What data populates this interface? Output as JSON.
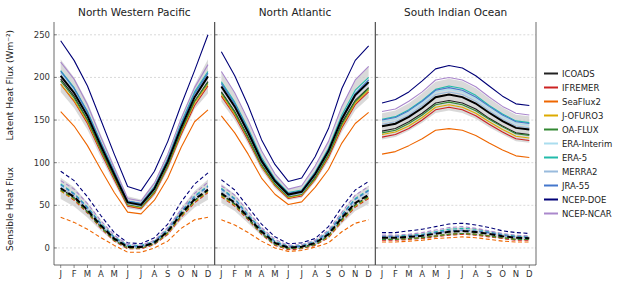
{
  "chart_data": {
    "type": "line",
    "categories": [
      "J",
      "F",
      "M",
      "A",
      "M",
      "J",
      "J",
      "A",
      "S",
      "O",
      "N",
      "D"
    ],
    "y_labels": [
      "Latent Heat Flux (Wm⁻²)",
      "Sensible Heat Flux"
    ],
    "ylim": [
      -20,
      265
    ],
    "yticks": [
      0,
      50,
      100,
      150,
      200,
      250
    ],
    "grid": true,
    "legend": "right",
    "series": [
      {
        "name": "ICOADS",
        "color": "#222222",
        "lhf": [
          [
            198,
            178,
            150,
            116,
            83,
            50,
            47,
            65,
            97,
            137,
            172,
            195
          ],
          [
            183,
            160,
            130,
            98,
            75,
            60,
            63,
            83,
            110,
            147,
            173,
            188
          ],
          [
            137,
            140,
            148,
            158,
            170,
            173,
            170,
            163,
            152,
            143,
            135,
            133
          ]
        ],
        "shf": [
          [
            70,
            59,
            43,
            25,
            10,
            1,
            1,
            6,
            19,
            39,
            56,
            68
          ],
          [
            63,
            52,
            35,
            18,
            5,
            0,
            1,
            5,
            15,
            34,
            51,
            61
          ],
          [
            10,
            10,
            11,
            12,
            14,
            16,
            17,
            16,
            14,
            12,
            10,
            10
          ]
        ]
      },
      {
        "name": "IFREMER",
        "color": "#cc2222",
        "lhf": [
          [
            192,
            172,
            146,
            112,
            80,
            49,
            46,
            64,
            95,
            133,
            167,
            190
          ],
          [
            178,
            155,
            126,
            95,
            73,
            58,
            61,
            80,
            106,
            141,
            168,
            183
          ],
          [
            130,
            133,
            140,
            150,
            162,
            165,
            162,
            155,
            145,
            136,
            128,
            126
          ]
        ],
        "shf": [
          [
            67,
            56,
            41,
            23,
            8,
            -1,
            -1,
            4,
            16,
            36,
            53,
            65
          ],
          [
            60,
            49,
            33,
            16,
            3,
            -2,
            -1,
            3,
            12,
            31,
            48,
            58
          ],
          [
            9,
            9,
            10,
            11,
            13,
            15,
            16,
            15,
            13,
            11,
            9,
            9
          ]
        ]
      },
      {
        "name": "SeaFlux2",
        "color": "#ee6600",
        "lhf": [
          [
            160,
            143,
            120,
            92,
            65,
            42,
            40,
            56,
            82,
            118,
            148,
            162
          ],
          [
            155,
            135,
            110,
            82,
            63,
            51,
            54,
            71,
            92,
            123,
            146,
            159
          ],
          [
            110,
            113,
            120,
            128,
            138,
            140,
            138,
            132,
            123,
            115,
            108,
            106
          ]
        ],
        "shf": [
          [
            36,
            30,
            22,
            12,
            3,
            -5,
            -5,
            0,
            8,
            23,
            33,
            36
          ],
          [
            33,
            27,
            18,
            8,
            0,
            -4,
            -3,
            1,
            6,
            19,
            29,
            33
          ],
          [
            7,
            7,
            8,
            9,
            11,
            12,
            13,
            12,
            10,
            8,
            7,
            7
          ]
        ]
      },
      {
        "name": "J-OFURO3",
        "color": "#ddaa00",
        "lhf": [
          [
            192,
            173,
            148,
            114,
            82,
            50,
            47,
            65,
            96,
            135,
            170,
            192
          ],
          [
            180,
            157,
            128,
            96,
            74,
            59,
            62,
            81,
            108,
            143,
            170,
            185
          ],
          [
            133,
            136,
            143,
            153,
            165,
            168,
            165,
            158,
            148,
            139,
            131,
            129
          ]
        ],
        "shf": [
          [
            67,
            57,
            42,
            24,
            9,
            0,
            0,
            5,
            17,
            37,
            54,
            66
          ],
          [
            61,
            50,
            34,
            17,
            4,
            -1,
            0,
            4,
            13,
            32,
            49,
            59
          ],
          [
            10,
            10,
            11,
            12,
            14,
            16,
            17,
            16,
            14,
            12,
            10,
            10
          ]
        ]
      },
      {
        "name": "OA-FLUX",
        "color": "#338833",
        "lhf": [
          [
            196,
            176,
            150,
            115,
            83,
            51,
            48,
            66,
            97,
            137,
            172,
            194
          ],
          [
            182,
            159,
            129,
            97,
            75,
            60,
            63,
            82,
            109,
            145,
            172,
            187
          ],
          [
            135,
            138,
            146,
            156,
            168,
            171,
            168,
            161,
            151,
            142,
            134,
            132
          ]
        ],
        "shf": [
          [
            68,
            58,
            42,
            24,
            9,
            0,
            0,
            5,
            18,
            38,
            55,
            67
          ],
          [
            62,
            51,
            34,
            17,
            4,
            -1,
            0,
            4,
            14,
            33,
            50,
            60
          ],
          [
            10,
            10,
            11,
            12,
            14,
            16,
            17,
            16,
            14,
            12,
            10,
            10
          ]
        ]
      },
      {
        "name": "ERA-Interim",
        "color": "#aaddee",
        "lhf": [
          [
            205,
            185,
            158,
            122,
            88,
            54,
            51,
            70,
            103,
            144,
            180,
            204
          ],
          [
            192,
            168,
            138,
            104,
            80,
            64,
            67,
            88,
            116,
            154,
            182,
            197
          ],
          [
            148,
            151,
            159,
            170,
            183,
            186,
            183,
            175,
            164,
            154,
            146,
            144
          ]
        ],
        "shf": [
          [
            73,
            63,
            47,
            28,
            12,
            2,
            2,
            7,
            21,
            42,
            59,
            71
          ],
          [
            68,
            56,
            38,
            21,
            7,
            1,
            2,
            7,
            18,
            38,
            56,
            66
          ],
          [
            13,
            13,
            14,
            15,
            18,
            20,
            21,
            20,
            18,
            15,
            13,
            12
          ]
        ]
      },
      {
        "name": "ERA-5",
        "color": "#22bbaa",
        "lhf": [
          [
            208,
            188,
            160,
            124,
            90,
            55,
            52,
            72,
            105,
            147,
            183,
            207
          ],
          [
            195,
            171,
            140,
            106,
            81,
            65,
            68,
            89,
            117,
            156,
            185,
            200
          ],
          [
            151,
            154,
            162,
            173,
            186,
            190,
            187,
            179,
            167,
            157,
            149,
            147
          ]
        ],
        "shf": [
          [
            75,
            64,
            48,
            29,
            13,
            3,
            3,
            8,
            22,
            43,
            61,
            73
          ],
          [
            70,
            58,
            39,
            22,
            8,
            2,
            3,
            8,
            19,
            39,
            58,
            68
          ],
          [
            14,
            14,
            15,
            16,
            19,
            22,
            23,
            22,
            19,
            16,
            14,
            13
          ]
        ]
      },
      {
        "name": "MERRA2",
        "color": "#99bbdd",
        "lhf": [
          [
            202,
            182,
            154,
            119,
            86,
            52,
            49,
            68,
            100,
            141,
            177,
            200
          ],
          [
            188,
            165,
            134,
            100,
            77,
            61,
            64,
            85,
            112,
            150,
            178,
            193
          ],
          [
            145,
            148,
            156,
            167,
            180,
            183,
            180,
            172,
            161,
            151,
            143,
            141
          ]
        ],
        "shf": [
          [
            71,
            61,
            45,
            27,
            11,
            1,
            1,
            6,
            20,
            40,
            58,
            69
          ],
          [
            66,
            54,
            36,
            19,
            5,
            0,
            1,
            5,
            16,
            36,
            53,
            64
          ],
          [
            12,
            12,
            13,
            14,
            17,
            19,
            20,
            19,
            17,
            14,
            12,
            11
          ]
        ]
      },
      {
        "name": "JRA-55",
        "color": "#4477cc",
        "lhf": [
          [
            207,
            187,
            159,
            123,
            89,
            55,
            52,
            71,
            104,
            145,
            181,
            205
          ],
          [
            193,
            169,
            138,
            104,
            80,
            64,
            67,
            88,
            115,
            153,
            181,
            197
          ],
          [
            150,
            153,
            161,
            172,
            185,
            188,
            185,
            177,
            166,
            156,
            148,
            146
          ]
        ],
        "shf": [
          [
            74,
            63,
            47,
            28,
            12,
            2,
            2,
            7,
            21,
            42,
            60,
            72
          ],
          [
            69,
            57,
            38,
            21,
            7,
            1,
            2,
            7,
            18,
            38,
            57,
            67
          ],
          [
            13,
            13,
            14,
            15,
            18,
            20,
            21,
            20,
            18,
            15,
            13,
            12
          ]
        ]
      },
      {
        "name": "NCEP-DOE",
        "color": "#000077",
        "lhf": [
          [
            243,
            220,
            190,
            150,
            110,
            72,
            67,
            90,
            125,
            168,
            208,
            250
          ],
          [
            230,
            202,
            167,
            127,
            98,
            78,
            82,
            107,
            140,
            187,
            220,
            237
          ],
          [
            170,
            174,
            183,
            196,
            210,
            214,
            211,
            202,
            190,
            178,
            169,
            167
          ]
        ],
        "shf": [
          [
            90,
            79,
            60,
            38,
            18,
            6,
            5,
            12,
            28,
            54,
            75,
            88
          ],
          [
            80,
            68,
            48,
            28,
            13,
            5,
            6,
            11,
            25,
            48,
            68,
            78
          ],
          [
            18,
            18,
            20,
            22,
            25,
            28,
            29,
            27,
            24,
            20,
            18,
            17
          ]
        ]
      },
      {
        "name": "NCEP-NCAR",
        "color": "#aa88cc",
        "lhf": [
          [
            218,
            198,
            168,
            130,
            94,
            58,
            55,
            76,
            110,
            152,
            188,
            215
          ],
          [
            207,
            182,
            150,
            114,
            87,
            69,
            73,
            96,
            125,
            166,
            197,
            213
          ],
          [
            160,
            163,
            172,
            183,
            197,
            200,
            197,
            189,
            177,
            166,
            158,
            156
          ]
        ],
        "shf": [
          [
            79,
            69,
            52,
            32,
            15,
            4,
            3,
            9,
            24,
            45,
            64,
            77
          ],
          [
            73,
            62,
            43,
            24,
            10,
            3,
            4,
            9,
            21,
            42,
            62,
            72
          ],
          [
            15,
            15,
            16,
            18,
            21,
            24,
            25,
            23,
            20,
            17,
            15,
            14
          ]
        ]
      }
    ],
    "panels": [
      {
        "title": "North Western Pacific",
        "lhf_mean": [
          201.9091,
          182,
          154.8182,
          119.7273,
          86.3636,
          53.4545,
          50.3636,
          69.3636,
          101.2727,
          141.5455,
          176.9091,
          201.2727
        ],
        "lhf_std": [
          19.1238,
          17.8987,
          16.0953,
          13.3287,
          10.3509,
          7.0886,
          6.4705,
          8.1939,
          10.181,
          11.942,
          14.0871,
          20.1498
        ],
        "shf_mean": [
          70,
          59.9091,
          44.4545,
          26.3636,
          10.9091,
          1.1818,
          1,
          6.2727,
          19.4545,
          39.9091,
          57.0909,
          68.3636
        ],
        "shf_std": [
          12.4681,
          11.3093,
          8.8149,
          6.1092,
          3.7284,
          2.7242,
          2.4863,
          2.8949,
          4.831,
          7.1153,
          9.577,
          11.9413
        ]
      },
      {
        "title": "North Atlantic",
        "lhf_mean": [
          189.3636,
          165.7273,
          135.4545,
          102.0909,
          78.4545,
          62.6364,
          65.8182,
          86.3636,
          113.6364,
          151.3636,
          179.2727,
          194.4545
        ],
        "lhf_std": [
          17.8594,
          16.0629,
          13.8391,
          10.9665,
          8.4247,
          6.5543,
          6.8599,
          8.8859,
          11.4358,
          15.2511,
          17.6588,
          18.5245
        ],
        "shf_mean": [
          64.0909,
          53.0909,
          36,
          19.1818,
          6,
          0.3636,
          1.3636,
          5.8182,
          16.0909,
          35.4545,
          52.8182,
          62.3636
        ],
        "shf_std": [
          11.3174,
          9.83,
          7.0839,
          4.877,
          3.3845,
          2.3461,
          2.3461,
          2.7574,
          4.795,
          6.9852,
          9.4659,
          10.8985
        ]
      },
      {
        "title": "South Indian Ocean",
        "lhf_mean": [
          142.6364,
          145.7273,
          153.6364,
          164.1818,
          176.7273,
          179.8182,
          176.9091,
          169.3636,
          158.5455,
          148.8182,
          140.8182,
          138.8182
        ],
        "lhf_std": [
          15.423,
          15.5861,
          16.1767,
          17.288,
          18.3357,
          18.7414,
          18.5495,
          17.7931,
          16.9242,
          15.9021,
          15.5436,
          15.5436
        ],
        "shf_mean": [
          11.9091,
          11.9091,
          13,
          14.1818,
          16.7273,
          18.9091,
          19.9091,
          18.7273,
          16.4545,
          13.8182,
          11.9091,
          11.3636
        ],
        "shf_std": [
          2.9681,
          2.9681,
          3.1623,
          3.4593,
          3.8634,
          4.358,
          4.358,
          4.0696,
          3.7262,
          3.1281,
          2.9681,
          2.5681
        ]
      }
    ]
  }
}
